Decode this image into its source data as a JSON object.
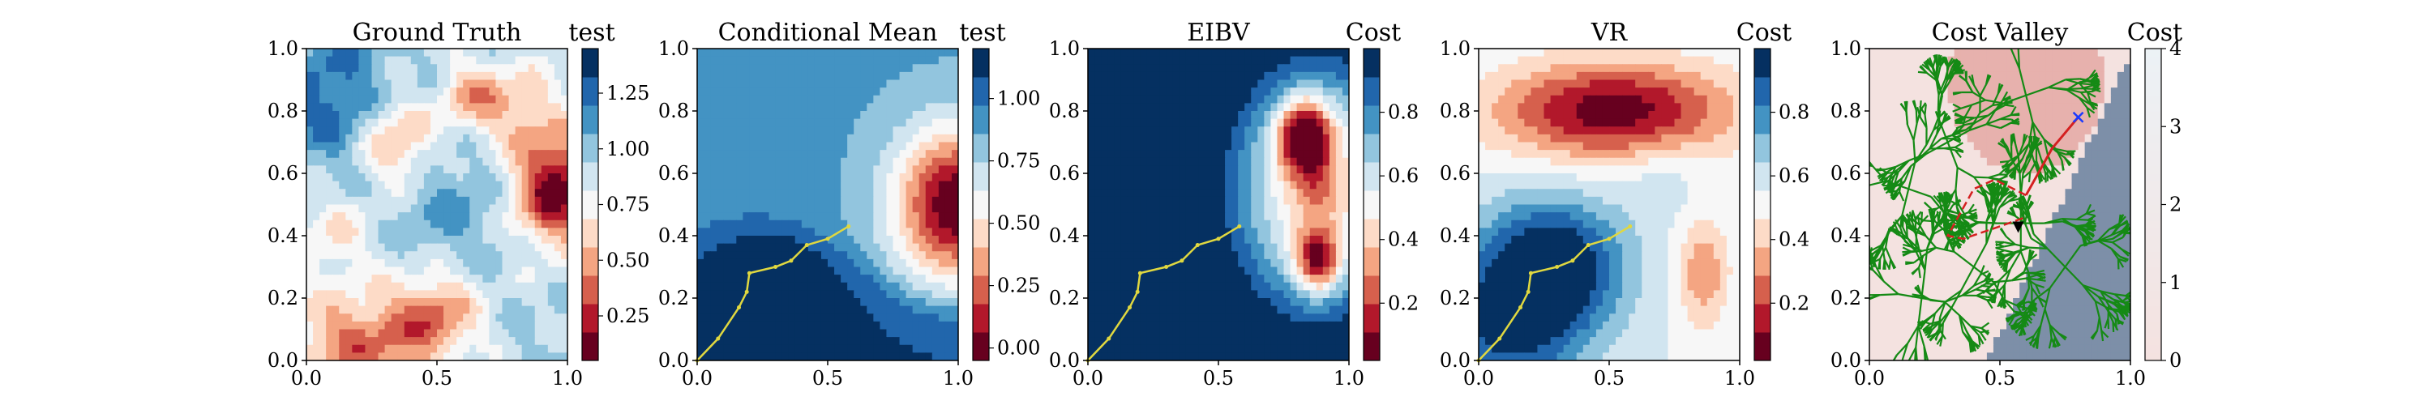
{
  "figure": {
    "background": "#ffffff",
    "diverging_colormap": [
      "#67001f",
      "#b2182b",
      "#d6604d",
      "#f4a582",
      "#fddbc7",
      "#f7f7f7",
      "#d1e5f0",
      "#92c5de",
      "#4393c3",
      "#2166ac",
      "#053061"
    ],
    "path_color": "#e0d840",
    "tree_color": "#158a15",
    "route_color": "#d42020"
  },
  "chart_data": [
    {
      "type": "heatmap",
      "title": "Ground Truth",
      "colorbar_label": "test",
      "xlim": [
        0,
        1
      ],
      "ylim": [
        0,
        1
      ],
      "xticks": [
        "0.0",
        "0.5",
        "1.0"
      ],
      "yticks": [
        "0.0",
        "0.2",
        "0.4",
        "0.6",
        "0.8",
        "1.0"
      ],
      "cbar_range": [
        0.05,
        1.45
      ],
      "cbar_ticks": [
        "0.25",
        "0.50",
        "0.75",
        "1.00",
        "1.25"
      ],
      "cbar_tick_values": [
        0.25,
        0.5,
        0.75,
        1.0,
        1.25
      ],
      "field": "ground_truth",
      "features": {
        "low_centers": [
          [
            0.2,
            0.05
          ],
          [
            0.45,
            0.15
          ],
          [
            0.1,
            0.4
          ]
        ],
        "high_centers": [
          [
            0.95,
            0.55
          ],
          [
            0.8,
            0.8
          ],
          [
            0.35,
            0.7
          ]
        ]
      }
    },
    {
      "type": "heatmap",
      "title": "Conditional Mean",
      "colorbar_label": "test",
      "xlim": [
        0,
        1
      ],
      "ylim": [
        0,
        1
      ],
      "xticks": [
        "0.0",
        "0.5",
        "1.0"
      ],
      "yticks": [
        "0.0",
        "0.2",
        "0.4",
        "0.6",
        "0.8",
        "1.0"
      ],
      "cbar_range": [
        -0.05,
        1.2
      ],
      "cbar_ticks": [
        "0.00",
        "0.25",
        "0.50",
        "0.75",
        "1.00"
      ],
      "cbar_tick_values": [
        0.0,
        0.25,
        0.5,
        0.75,
        1.0
      ],
      "field": "conditional_mean",
      "features": {
        "high_center": [
          0.98,
          0.5
        ]
      },
      "path": {
        "x": [
          0.0,
          0.08,
          0.16,
          0.19,
          0.2,
          0.3,
          0.36,
          0.42,
          0.5,
          0.58
        ],
        "y": [
          0.0,
          0.07,
          0.17,
          0.22,
          0.28,
          0.3,
          0.32,
          0.37,
          0.39,
          0.43
        ]
      }
    },
    {
      "type": "heatmap",
      "title": "EIBV",
      "colorbar_label": "Cost",
      "xlim": [
        0,
        1
      ],
      "ylim": [
        0,
        1
      ],
      "xticks": [
        "0.0",
        "0.5",
        "1.0"
      ],
      "yticks": [
        "0.0",
        "0.2",
        "0.4",
        "0.6",
        "0.8",
        "1.0"
      ],
      "cbar_range": [
        0.02,
        1.0
      ],
      "cbar_ticks": [
        "0.2",
        "0.4",
        "0.6",
        "0.8"
      ],
      "cbar_tick_values": [
        0.2,
        0.4,
        0.6,
        0.8
      ],
      "field": "eibv",
      "features": {
        "low_centers": [
          [
            0.83,
            0.72
          ],
          [
            0.88,
            0.32
          ]
        ]
      },
      "path": {
        "x": [
          0.0,
          0.08,
          0.16,
          0.19,
          0.2,
          0.3,
          0.36,
          0.42,
          0.5,
          0.58
        ],
        "y": [
          0.0,
          0.07,
          0.17,
          0.22,
          0.28,
          0.3,
          0.32,
          0.37,
          0.39,
          0.43
        ]
      }
    },
    {
      "type": "heatmap",
      "title": "VR",
      "colorbar_label": "Cost",
      "xlim": [
        0,
        1
      ],
      "ylim": [
        0,
        1
      ],
      "xticks": [
        "0.0",
        "0.5",
        "1.0"
      ],
      "yticks": [
        "0.0",
        "0.2",
        "0.4",
        "0.6",
        "0.8",
        "1.0"
      ],
      "cbar_range": [
        0.02,
        1.0
      ],
      "cbar_ticks": [
        "0.2",
        "0.4",
        "0.6",
        "0.8"
      ],
      "cbar_tick_values": [
        0.2,
        0.4,
        0.6,
        0.8
      ],
      "field": "vr",
      "features": {
        "low_band_y": 0.8,
        "low_spot": [
          0.85,
          0.28
        ]
      },
      "path": {
        "x": [
          0.0,
          0.08,
          0.16,
          0.19,
          0.2,
          0.3,
          0.36,
          0.42,
          0.5,
          0.58
        ],
        "y": [
          0.0,
          0.07,
          0.17,
          0.22,
          0.28,
          0.3,
          0.32,
          0.37,
          0.39,
          0.43
        ]
      }
    },
    {
      "type": "heatmap",
      "title": "Cost Valley",
      "colorbar_label": "Cost",
      "xlim": [
        0,
        1
      ],
      "ylim": [
        0,
        1
      ],
      "xticks": [
        "0.0",
        "0.5",
        "1.0"
      ],
      "yticks": [
        "0.0",
        "0.2",
        "0.4",
        "0.6",
        "0.8",
        "1.0"
      ],
      "cbar_range": [
        0,
        4
      ],
      "cbar_ticks": [
        "0",
        "1",
        "2",
        "3",
        "4"
      ],
      "cbar_tick_values": [
        0,
        1,
        2,
        3,
        4
      ],
      "field": "cost_valley",
      "features": {
        "boundary_line": [
          [
            0.45,
            0.0
          ],
          [
            1.0,
            0.98
          ]
        ]
      },
      "route_dashed": {
        "x": [
          0.6,
          0.48,
          0.4,
          0.3,
          0.36,
          0.5,
          0.6
        ],
        "y": [
          0.53,
          0.58,
          0.55,
          0.4,
          0.39,
          0.43,
          0.46
        ]
      },
      "route_solid": {
        "x": [
          0.6,
          0.7,
          0.8
        ],
        "y": [
          0.53,
          0.68,
          0.78
        ]
      },
      "start_marker": [
        0.57,
        0.43
      ],
      "goal_marker": [
        0.8,
        0.78
      ]
    }
  ]
}
